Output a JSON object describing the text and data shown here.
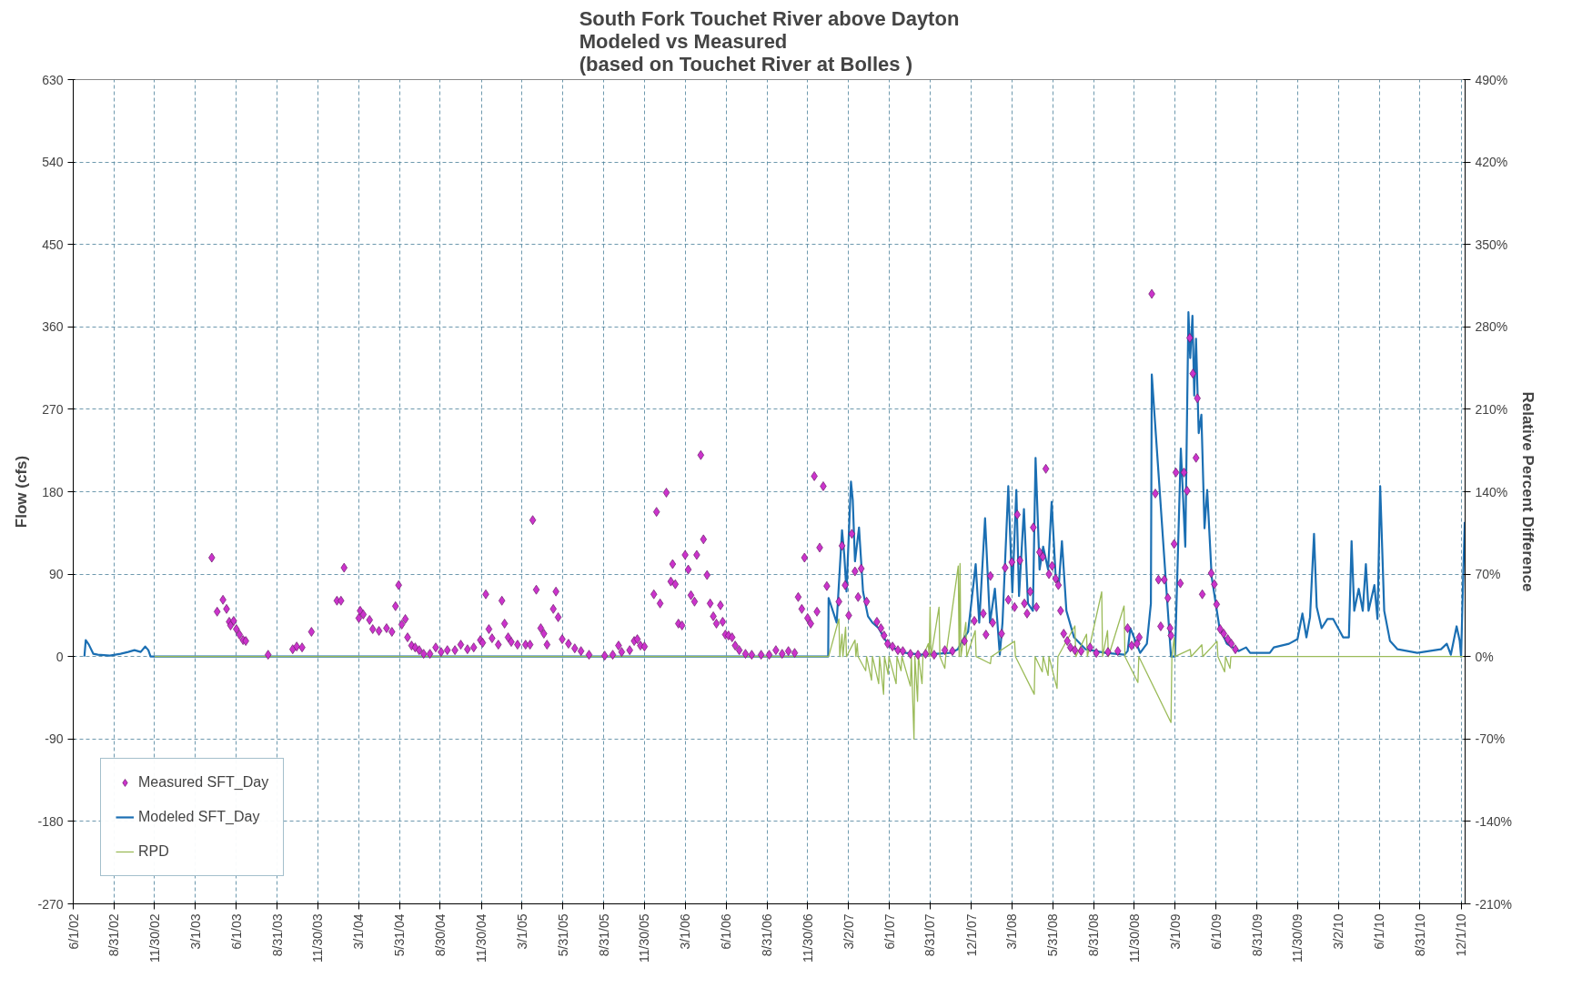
{
  "chart_data": {
    "type": "line",
    "title": "South Fork Touchet River above Dayton\nModeled vs Measured\n(based on Touchet River at Bolles )",
    "ylabel": "Flow (cfs)",
    "y2label": "Relative Percent Difference",
    "xlim": [
      "2002-06-01",
      "2010-12-10"
    ],
    "xticks": [
      {
        "value": "2002-06-01",
        "label": "6/1/02"
      },
      {
        "value": "2002-08-31",
        "label": "8/31/02"
      },
      {
        "value": "2002-11-30",
        "label": "11/30/02"
      },
      {
        "value": "2003-03-01",
        "label": "3/1/03"
      },
      {
        "value": "2003-06-01",
        "label": "6/1/03"
      },
      {
        "value": "2003-08-31",
        "label": "8/31/03"
      },
      {
        "value": "2003-11-30",
        "label": "11/30/03"
      },
      {
        "value": "2004-03-01",
        "label": "3/1/04"
      },
      {
        "value": "2004-05-31",
        "label": "5/31/04"
      },
      {
        "value": "2004-08-30",
        "label": "8/30/04"
      },
      {
        "value": "2004-11-30",
        "label": "11/30/04"
      },
      {
        "value": "2005-03-01",
        "label": "3/1/05"
      },
      {
        "value": "2005-05-31",
        "label": "5/31/05"
      },
      {
        "value": "2005-08-31",
        "label": "8/31/05"
      },
      {
        "value": "2005-11-30",
        "label": "11/30/05"
      },
      {
        "value": "2006-03-01",
        "label": "3/1/06"
      },
      {
        "value": "2006-06-01",
        "label": "6/1/06"
      },
      {
        "value": "2006-08-31",
        "label": "8/31/06"
      },
      {
        "value": "2006-11-30",
        "label": "11/30/06"
      },
      {
        "value": "2007-03-02",
        "label": "3/2/07"
      },
      {
        "value": "2007-06-01",
        "label": "6/1/07"
      },
      {
        "value": "2007-08-31",
        "label": "8/31/07"
      },
      {
        "value": "2007-12-01",
        "label": "12/1/07"
      },
      {
        "value": "2008-03-01",
        "label": "3/1/08"
      },
      {
        "value": "2008-05-31",
        "label": "5/31/08"
      },
      {
        "value": "2008-08-31",
        "label": "8/31/08"
      },
      {
        "value": "2008-11-30",
        "label": "11/30/08"
      },
      {
        "value": "2009-03-01",
        "label": "3/1/09"
      },
      {
        "value": "2009-06-01",
        "label": "6/1/09"
      },
      {
        "value": "2009-08-31",
        "label": "8/31/09"
      },
      {
        "value": "2009-11-30",
        "label": "11/30/09"
      },
      {
        "value": "2010-03-02",
        "label": "3/2/10"
      },
      {
        "value": "2010-06-01",
        "label": "6/1/10"
      },
      {
        "value": "2010-08-31",
        "label": "8/31/10"
      },
      {
        "value": "2010-12-01",
        "label": "12/1/10"
      }
    ],
    "ylim": [
      -270,
      630
    ],
    "yticks": [
      -270,
      -180,
      -90,
      0,
      90,
      180,
      270,
      360,
      450,
      540,
      630
    ],
    "y2lim": [
      -210,
      490
    ],
    "y2ticks": [
      {
        "value": -210,
        "label": "-210%"
      },
      {
        "value": -140,
        "label": "-140%"
      },
      {
        "value": -70,
        "label": "-70%"
      },
      {
        "value": 0,
        "label": "0%"
      },
      {
        "value": 70,
        "label": "70%"
      },
      {
        "value": 140,
        "label": "140%"
      },
      {
        "value": 210,
        "label": "210%"
      },
      {
        "value": 280,
        "label": "280%"
      },
      {
        "value": 350,
        "label": "350%"
      },
      {
        "value": 420,
        "label": "420%"
      },
      {
        "value": 490,
        "label": "490%"
      }
    ],
    "grid": true,
    "legend": "bottom left",
    "series": [
      {
        "name": "Measured SFT_Day",
        "type": "scatter",
        "marker": "diamond",
        "color": "#cc33cc",
        "x": [
          "2003-04-07",
          "2003-04-19",
          "2003-05-02",
          "2003-05-10",
          "2003-05-16",
          "2003-05-19",
          "2003-05-26",
          "2003-06-01",
          "2003-06-08",
          "2003-06-16",
          "2003-06-22",
          "2003-08-11",
          "2003-10-05",
          "2003-10-14",
          "2003-10-26",
          "2003-11-16",
          "2004-01-12",
          "2004-01-21",
          "2004-01-28",
          "2004-03-01",
          "2004-03-04",
          "2004-03-11",
          "2004-03-25",
          "2004-04-01",
          "2004-04-15",
          "2004-05-02",
          "2004-05-14",
          "2004-05-22",
          "2004-05-29",
          "2004-06-05",
          "2004-06-13",
          "2004-06-18",
          "2004-06-27",
          "2004-07-05",
          "2004-07-14",
          "2004-07-24",
          "2004-08-07",
          "2004-08-20",
          "2004-09-01",
          "2004-09-15",
          "2004-10-02",
          "2004-10-15",
          "2004-10-30",
          "2004-11-13",
          "2004-11-28",
          "2004-12-03",
          "2004-12-10",
          "2004-12-17",
          "2004-12-24",
          "2005-01-07",
          "2005-01-15",
          "2005-01-21",
          "2005-01-29",
          "2005-02-05",
          "2005-02-19",
          "2005-03-09",
          "2005-03-19",
          "2005-03-25",
          "2005-04-02",
          "2005-04-12",
          "2005-04-19",
          "2005-04-26",
          "2005-05-10",
          "2005-05-16",
          "2005-05-21",
          "2005-05-30",
          "2005-06-13",
          "2005-06-27",
          "2005-07-11",
          "2005-07-29",
          "2005-09-02",
          "2005-09-20",
          "2005-10-03",
          "2005-10-10",
          "2005-10-28",
          "2005-11-07",
          "2005-11-14",
          "2005-11-21",
          "2005-11-30",
          "2005-12-21",
          "2005-12-27",
          "2006-01-04",
          "2006-01-18",
          "2006-01-28",
          "2006-02-01",
          "2006-02-07",
          "2006-02-14",
          "2006-02-22",
          "2006-03-01",
          "2006-03-08",
          "2006-03-14",
          "2006-03-22",
          "2006-03-27",
          "2006-04-05",
          "2006-04-11",
          "2006-04-19",
          "2006-04-26",
          "2006-05-03",
          "2006-05-10",
          "2006-05-19",
          "2006-05-24",
          "2006-05-30",
          "2006-06-06",
          "2006-06-14",
          "2006-06-21",
          "2006-06-30",
          "2006-07-14",
          "2006-07-28",
          "2006-08-18",
          "2006-09-05",
          "2006-09-20",
          "2006-10-04",
          "2006-10-18",
          "2006-11-01",
          "2006-11-09",
          "2006-11-17",
          "2006-11-23",
          "2006-11-30",
          "2006-12-07",
          "2006-12-15",
          "2006-12-21",
          "2006-12-27",
          "2007-01-04",
          "2007-01-12",
          "2007-02-08",
          "2007-02-15",
          "2007-02-22",
          "2007-03-02",
          "2007-03-09",
          "2007-03-16",
          "2007-03-23",
          "2007-03-30",
          "2007-04-11",
          "2007-05-04",
          "2007-05-13",
          "2007-05-20",
          "2007-05-28",
          "2007-06-08",
          "2007-06-20",
          "2007-07-01",
          "2007-07-18",
          "2007-08-04",
          "2007-08-21",
          "2007-09-09",
          "2007-10-03",
          "2007-10-20",
          "2007-11-16",
          "2007-12-08",
          "2007-12-28",
          "2008-01-03",
          "2008-01-13",
          "2008-01-18",
          "2008-02-07",
          "2008-02-15",
          "2008-02-22",
          "2008-03-01",
          "2008-03-07",
          "2008-03-13",
          "2008-03-19",
          "2008-03-29",
          "2008-04-04",
          "2008-04-11",
          "2008-04-18",
          "2008-04-25",
          "2008-05-02",
          "2008-05-09",
          "2008-05-16",
          "2008-05-23",
          "2008-05-30",
          "2008-06-07",
          "2008-06-13",
          "2008-06-18",
          "2008-06-25",
          "2008-07-03",
          "2008-07-10",
          "2008-07-20",
          "2008-08-03",
          "2008-08-23",
          "2008-09-06",
          "2008-10-02",
          "2008-10-24",
          "2008-11-15",
          "2008-11-24",
          "2008-12-06",
          "2008-12-11",
          "2009-01-08",
          "2009-01-16",
          "2009-01-23",
          "2009-01-28",
          "2009-02-05",
          "2009-02-13",
          "2009-02-18",
          "2009-02-20",
          "2009-02-27",
          "2009-03-03",
          "2009-03-13",
          "2009-03-21",
          "2009-03-28",
          "2009-04-03",
          "2009-04-10",
          "2009-04-17",
          "2009-04-20",
          "2009-05-01",
          "2009-05-21",
          "2009-05-28",
          "2009-06-02",
          "2009-06-10",
          "2009-06-18",
          "2009-06-27",
          "2009-07-05",
          "2009-07-14"
        ],
        "values": [
          108,
          49,
          62,
          52,
          38,
          34,
          39,
          30,
          24,
          18,
          17,
          2,
          8,
          11,
          10,
          27,
          61,
          61,
          97,
          42,
          50,
          46,
          40,
          30,
          28,
          31,
          27,
          55,
          78,
          35,
          41,
          21,
          12,
          10,
          7,
          3,
          3,
          10,
          5,
          7,
          7,
          13,
          8,
          10,
          18,
          15,
          68,
          30,
          20,
          13,
          61,
          36,
          21,
          16,
          13,
          13,
          13,
          149,
          73,
          31,
          25,
          13,
          52,
          71,
          43,
          19,
          14,
          9,
          6,
          2,
          1,
          2,
          12,
          5,
          7,
          17,
          19,
          12,
          11,
          68,
          158,
          58,
          179,
          82,
          101,
          79,
          36,
          34,
          111,
          95,
          67,
          60,
          111,
          220,
          128,
          89,
          58,
          44,
          36,
          56,
          38,
          24,
          23,
          21,
          12,
          7,
          3,
          2,
          2,
          2,
          7,
          3,
          6,
          4,
          65,
          52,
          108,
          42,
          36,
          197,
          49,
          119,
          186,
          77,
          60,
          121,
          78,
          45,
          134,
          93,
          65,
          96,
          60,
          38,
          31,
          23,
          14,
          11,
          7,
          6,
          3,
          2,
          3,
          2,
          7,
          6,
          17,
          39,
          47,
          24,
          88,
          37,
          25,
          97,
          62,
          103,
          54,
          155,
          105,
          58,
          47,
          71,
          141,
          54,
          114,
          109,
          205,
          90,
          99,
          85,
          78,
          50,
          25,
          17,
          10,
          7,
          6,
          10,
          4,
          5,
          6,
          31,
          12,
          14,
          21,
          396,
          178,
          84,
          33,
          84,
          64,
          31,
          23,
          123,
          201,
          80,
          201,
          181,
          348,
          309,
          217,
          282,
          68,
          91,
          79,
          57,
          30,
          25,
          19,
          14,
          8
        ]
      },
      {
        "name": "Modeled SFT_Day",
        "type": "line",
        "color": "#1b6fb3",
        "x": [
          "2002-06-26",
          "2002-06-29",
          "2002-07-06",
          "2002-07-16",
          "2002-07-26",
          "2002-08-22",
          "2002-09-15",
          "2002-10-02",
          "2002-10-16",
          "2002-10-30",
          "2002-11-09",
          "2002-11-16",
          "2002-11-21",
          "2003-06-01",
          "2004-06-01",
          "2005-06-01",
          "2006-06-01",
          "2007-01-15",
          "2007-01-16",
          "2007-02-03",
          "2007-02-15",
          "2007-02-20",
          "2007-02-25",
          "2007-03-07",
          "2007-03-11",
          "2007-03-16",
          "2007-03-25",
          "2007-04-03",
          "2007-04-14",
          "2007-04-24",
          "2007-05-08",
          "2007-05-19",
          "2007-06-02",
          "2007-07-07",
          "2007-08-11",
          "2007-09-15",
          "2007-10-15",
          "2007-11-01",
          "2007-11-16",
          "2007-11-24",
          "2007-12-11",
          "2007-12-19",
          "2008-01-01",
          "2008-01-12",
          "2008-01-23",
          "2008-02-03",
          "2008-02-09",
          "2008-02-22",
          "2008-03-02",
          "2008-03-11",
          "2008-03-17",
          "2008-03-28",
          "2008-04-06",
          "2008-04-17",
          "2008-04-23",
          "2008-05-02",
          "2008-05-10",
          "2008-05-21",
          "2008-05-29",
          "2008-06-07",
          "2008-06-14",
          "2008-06-21",
          "2008-07-01",
          "2008-07-18",
          "2008-08-13",
          "2008-09-26",
          "2008-11-08",
          "2008-11-15",
          "2008-11-21",
          "2008-12-13",
          "2008-12-28",
          "2009-01-06",
          "2009-01-08",
          "2009-02-20",
          "2009-03-01",
          "2009-03-06",
          "2009-03-14",
          "2009-03-24",
          "2009-03-31",
          "2009-04-04",
          "2009-04-09",
          "2009-04-13",
          "2009-04-17",
          "2009-04-23",
          "2009-04-29",
          "2009-05-06",
          "2009-05-12",
          "2009-05-22",
          "2009-06-08",
          "2009-06-25",
          "2009-07-21",
          "2009-08-07",
          "2009-08-16",
          "2009-09-29",
          "2009-10-08",
          "2009-11-11",
          "2009-11-30",
          "2009-12-11",
          "2009-12-20",
          "2009-12-28",
          "2010-01-06",
          "2010-01-12",
          "2010-01-23",
          "2010-02-05",
          "2010-02-18",
          "2010-03-12",
          "2010-03-25",
          "2010-03-31",
          "2010-04-06",
          "2010-04-16",
          "2010-04-25",
          "2010-05-02",
          "2010-05-08",
          "2010-05-21",
          "2010-05-28",
          "2010-06-03",
          "2010-06-12",
          "2010-06-25",
          "2010-07-12",
          "2010-08-25",
          "2010-10-17",
          "2010-10-30",
          "2010-11-08",
          "2010-11-21",
          "2010-11-28",
          "2010-12-01",
          "2010-12-09"
        ],
        "values": [
          0,
          18,
          13,
          3,
          2,
          1,
          3,
          5,
          7,
          5,
          11,
          7,
          0,
          0,
          0,
          0,
          0,
          0,
          64,
          37,
          138,
          111,
          71,
          191,
          171,
          104,
          141,
          71,
          44,
          37,
          31,
          21,
          11,
          4,
          2,
          3,
          4,
          8,
          21,
          27,
          101,
          37,
          151,
          37,
          74,
          2,
          37,
          186,
          70,
          182,
          66,
          161,
          58,
          50,
          217,
          95,
          120,
          95,
          169,
          87,
          78,
          126,
          50,
          21,
          8,
          4,
          2,
          6,
          31,
          4,
          14,
          58,
          308,
          0,
          0,
          87,
          227,
          120,
          376,
          326,
          372,
          285,
          347,
          244,
          264,
          140,
          182,
          87,
          33,
          14,
          6,
          10,
          4,
          4,
          10,
          14,
          19,
          47,
          21,
          43,
          134,
          54,
          31,
          41,
          41,
          21,
          21,
          126,
          50,
          74,
          50,
          101,
          50,
          78,
          41,
          186,
          50,
          17,
          8,
          4,
          8,
          14,
          2,
          33,
          17,
          0,
          147
        ]
      },
      {
        "name": "RPD",
        "type": "line",
        "axis": "y2",
        "color": "#9bbb59",
        "x": [
          "2002-11-30",
          "2007-01-16",
          "2007-02-08",
          "2007-02-10",
          "2007-02-15",
          "2007-02-17",
          "2007-02-23",
          "2007-02-25",
          "2007-03-16",
          "2007-03-18",
          "2007-03-21",
          "2007-03-23",
          "2007-04-09",
          "2007-04-11",
          "2007-04-22",
          "2007-04-24",
          "2007-05-08",
          "2007-05-10",
          "2007-05-19",
          "2007-05-21",
          "2007-05-29",
          "2007-05-31",
          "2007-06-16",
          "2007-06-18",
          "2007-06-27",
          "2007-06-29",
          "2007-07-18",
          "2007-07-20",
          "2007-07-26",
          "2007-07-28",
          "2007-08-03",
          "2007-08-05",
          "2007-08-13",
          "2007-08-15",
          "2007-08-27",
          "2007-08-29",
          "2007-08-31",
          "2007-09-02",
          "2007-09-20",
          "2007-09-22",
          "2007-10-03",
          "2007-10-05",
          "2007-11-02",
          "2007-11-04",
          "2007-11-06",
          "2007-11-08",
          "2007-11-19",
          "2007-11-21",
          "2007-12-10",
          "2007-12-12",
          "2008-01-13",
          "2008-01-15",
          "2008-03-07",
          "2008-03-09",
          "2008-04-20",
          "2008-04-22",
          "2008-05-08",
          "2008-05-10",
          "2008-05-21",
          "2008-05-23",
          "2008-06-10",
          "2008-06-12",
          "2008-07-20",
          "2008-07-22",
          "2008-08-15",
          "2008-08-17",
          "2008-09-18",
          "2008-09-20",
          "2008-10-01",
          "2008-10-03",
          "2008-11-07",
          "2008-11-09",
          "2008-12-08",
          "2008-12-10",
          "2009-02-20",
          "2009-02-22",
          "2009-02-27",
          "2009-03-01",
          "2009-04-04",
          "2009-04-06",
          "2009-04-30",
          "2009-05-02",
          "2009-06-03",
          "2009-06-05",
          "2009-06-20",
          "2009-06-22",
          "2009-07-02",
          "2009-07-04",
          "2010-12-09"
        ],
        "values": [
          0,
          0,
          32,
          0,
          19,
          0,
          25,
          0,
          14,
          0,
          11,
          0,
          -12,
          0,
          -20,
          0,
          -23,
          0,
          -32,
          0,
          -15,
          0,
          -23,
          0,
          -12,
          0,
          -25,
          0,
          -70,
          0,
          -38,
          0,
          -23,
          0,
          11,
          0,
          42,
          0,
          42,
          0,
          -10,
          0,
          77,
          0,
          79,
          0,
          29,
          0,
          22,
          0,
          -6,
          0,
          13,
          0,
          -32,
          0,
          -13,
          0,
          -16,
          0,
          -27,
          0,
          26,
          0,
          19,
          0,
          55,
          0,
          22,
          0,
          43,
          0,
          -22,
          0,
          -56,
          0,
          16,
          0,
          6,
          0,
          10,
          0,
          13,
          0,
          -13,
          0,
          -10,
          0,
          0
        ]
      }
    ]
  }
}
